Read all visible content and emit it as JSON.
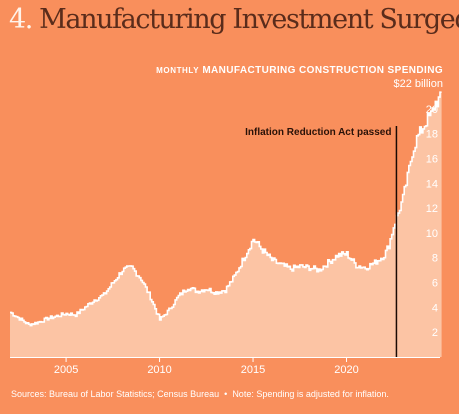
{
  "header": {
    "number": "4.",
    "title": "Manufacturing Investment Surged",
    "subtitle_prefix": "MONTHLY",
    "subtitle_rest": "MANUFACTURING CONSTRUCTION SPENDING",
    "ymax_label": "$22 billion"
  },
  "footer": {
    "source": "Sources: Bureau of Labor Statistics; Census Bureau",
    "separator": "•",
    "note": "Note: Spending is adjusted for inflation."
  },
  "colors": {
    "background": "#F98F5C",
    "area_fill": "#FCC4A4",
    "outline": "#FFFFFF",
    "annotation_line": "#1a0a04"
  },
  "chart_data": {
    "type": "area",
    "ylabel": "$22 billion",
    "ylim": [
      0,
      22
    ],
    "xlim": [
      2002.0,
      2025.0
    ],
    "yticks": [
      "2",
      "4",
      "6",
      "8",
      "10",
      "12",
      "14",
      "16",
      "18",
      "20"
    ],
    "xticks": [
      "2005",
      "2010",
      "2015",
      "2020"
    ],
    "grid": false,
    "annotation": {
      "x": 2022.67,
      "text": "Inflation Reduction Act passed"
    },
    "series": [
      {
        "x": [
          2002.0,
          2002.5,
          2003.0,
          2003.5,
          2004.0,
          2004.5,
          2005.0,
          2005.5,
          2006.0,
          2006.5,
          2007.0,
          2007.5,
          2008.0,
          2008.5,
          2009.0,
          2009.5,
          2010.0,
          2010.5,
          2011.0,
          2011.5,
          2012.0,
          2012.5,
          2013.0,
          2013.5,
          2014.0,
          2014.5,
          2015.0,
          2015.5,
          2016.0,
          2016.5,
          2017.0,
          2017.5,
          2018.0,
          2018.5,
          2019.0,
          2019.5,
          2020.0,
          2020.5,
          2021.0,
          2021.5,
          2022.0,
          2022.25,
          2022.5,
          2022.75,
          2023.0,
          2023.25,
          2023.5,
          2023.75,
          2024.0,
          2024.25,
          2024.5,
          2024.75,
          2025.0
        ],
        "values": [
          3.6,
          3.1,
          2.6,
          2.8,
          3.1,
          3.3,
          3.5,
          3.4,
          4.0,
          4.6,
          5.0,
          6.0,
          7.0,
          7.2,
          6.3,
          4.8,
          3.0,
          3.8,
          4.9,
          5.6,
          5.3,
          5.5,
          5.2,
          5.4,
          6.5,
          8.0,
          9.5,
          8.6,
          7.8,
          7.4,
          7.1,
          7.3,
          7.2,
          7.0,
          7.6,
          8.2,
          8.3,
          7.4,
          7.2,
          7.6,
          8.2,
          9.0,
          10.5,
          11.6,
          12.8,
          14.5,
          16.5,
          17.6,
          18.3,
          19.0,
          19.5,
          20.5,
          20.8
        ]
      }
    ]
  }
}
